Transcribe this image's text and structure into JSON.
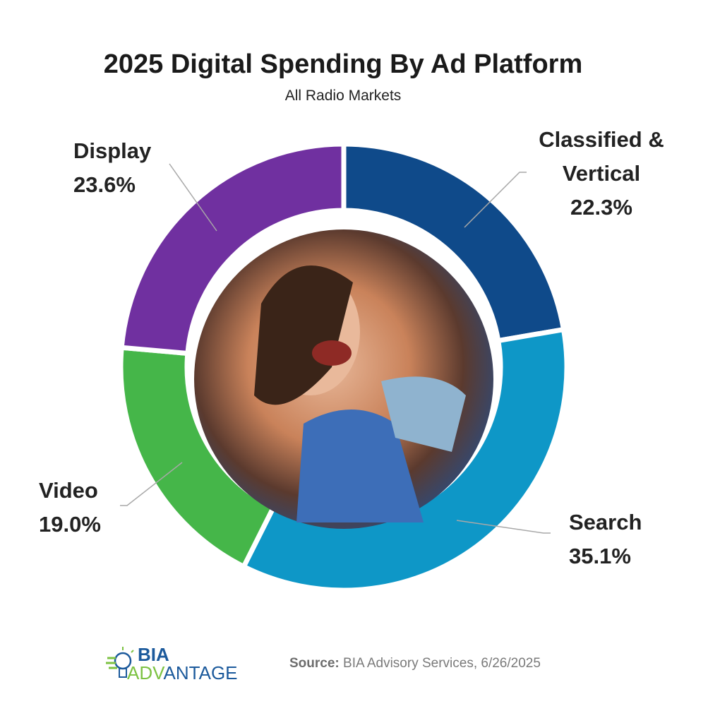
{
  "chart_data": {
    "type": "pie",
    "style": "donut",
    "title": "2025 Digital Spending By Ad Platform",
    "subtitle": "All Radio Markets",
    "slices": [
      {
        "label": "Classified & Vertical",
        "label_lines": [
          "Classified &",
          "Vertical"
        ],
        "value": 22.3,
        "display": "22.3%",
        "color": "#0f4a8a"
      },
      {
        "label": "Search",
        "label_lines": [
          "Search"
        ],
        "value": 35.1,
        "display": "35.1%",
        "color": "#0e97c7"
      },
      {
        "label": "Video",
        "label_lines": [
          "Video"
        ],
        "value": 19.0,
        "display": "19.0%",
        "color": "#45b649"
      },
      {
        "label": "Display",
        "label_lines": [
          "Display"
        ],
        "value": 23.6,
        "display": "23.6%",
        "color": "#7030a0"
      }
    ],
    "center_image": "photo of smiling woman at dentist"
  },
  "footer": {
    "source_label": "Source:",
    "source_text": "BIA Advisory Services, 6/26/2025",
    "logo": {
      "line1": "BIA",
      "line2_green": "ADV",
      "line2_blue": "ANTAGE"
    }
  }
}
